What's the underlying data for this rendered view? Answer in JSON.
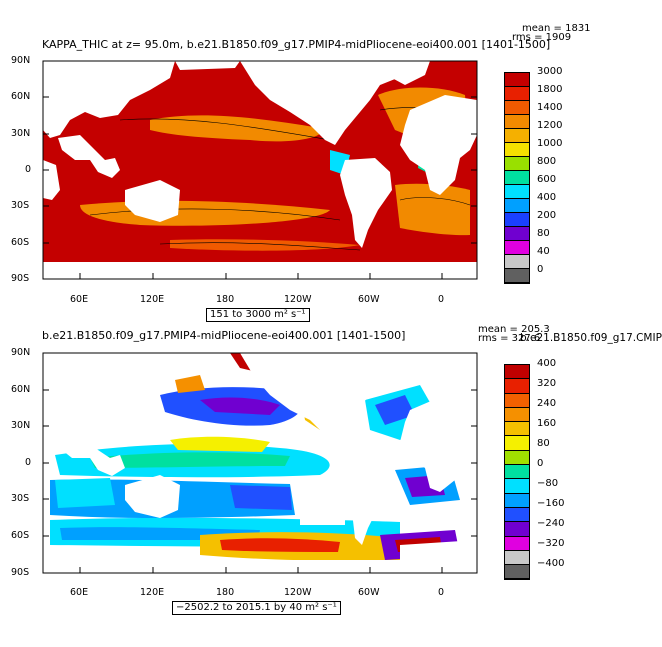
{
  "panels": [
    {
      "title": "KAPPA_THIC at z=  95.0m, b.e21.B1850.f09_g17.PMIP4-midPliocene-eoi400.001 [1401-1500]",
      "stat_mean": "mean = 1831",
      "stat_rms": "rms = 1909",
      "range_label": "151 to 3000 m² s⁻¹",
      "colorbar_labels": [
        "3000",
        "1800",
        "1400",
        "1200",
        "1000",
        "800",
        "600",
        "400",
        "200",
        "80",
        "40",
        "0"
      ],
      "colorbar_colors": [
        "#c40000",
        "#e82000",
        "#f05a00",
        "#f28a00",
        "#f5b000",
        "#f5e000",
        "#99e000",
        "#00e0a0",
        "#00e0ff",
        "#00a0ff",
        "#1a40ff",
        "#7000d0",
        "#e000e0",
        "#c8c8c8",
        "#606060"
      ]
    },
    {
      "title": "b.e21.B1850.f09_g17.PMIP4-midPliocene-eoi400.001 [1401-1500]",
      "stat_mean": "mean = 205.3",
      "stat_rms": "rms = 327.6",
      "right_title": "b.e21.B1850.f09_g17.CMIP",
      "range_label": "−2502.2 to 2015.1 by 40 m² s⁻¹",
      "colorbar_labels": [
        "400",
        "320",
        "240",
        "160",
        "80",
        "0",
        "−80",
        "−160",
        "−240",
        "−320",
        "−400"
      ],
      "colorbar_colors": [
        "#c00000",
        "#e82000",
        "#f26000",
        "#f59000",
        "#f5c000",
        "#f5f000",
        "#a0e000",
        "#00e0a0",
        "#00e0ff",
        "#00a0ff",
        "#2050ff",
        "#7000d0",
        "#e000e0",
        "#c8c8c8",
        "#606060"
      ]
    }
  ],
  "lat_ticks": [
    "90N",
    "60N",
    "30N",
    "0",
    "30S",
    "60S",
    "90S"
  ],
  "lon_ticks": [
    "60E",
    "120E",
    "180",
    "120W",
    "60W",
    "0"
  ]
}
